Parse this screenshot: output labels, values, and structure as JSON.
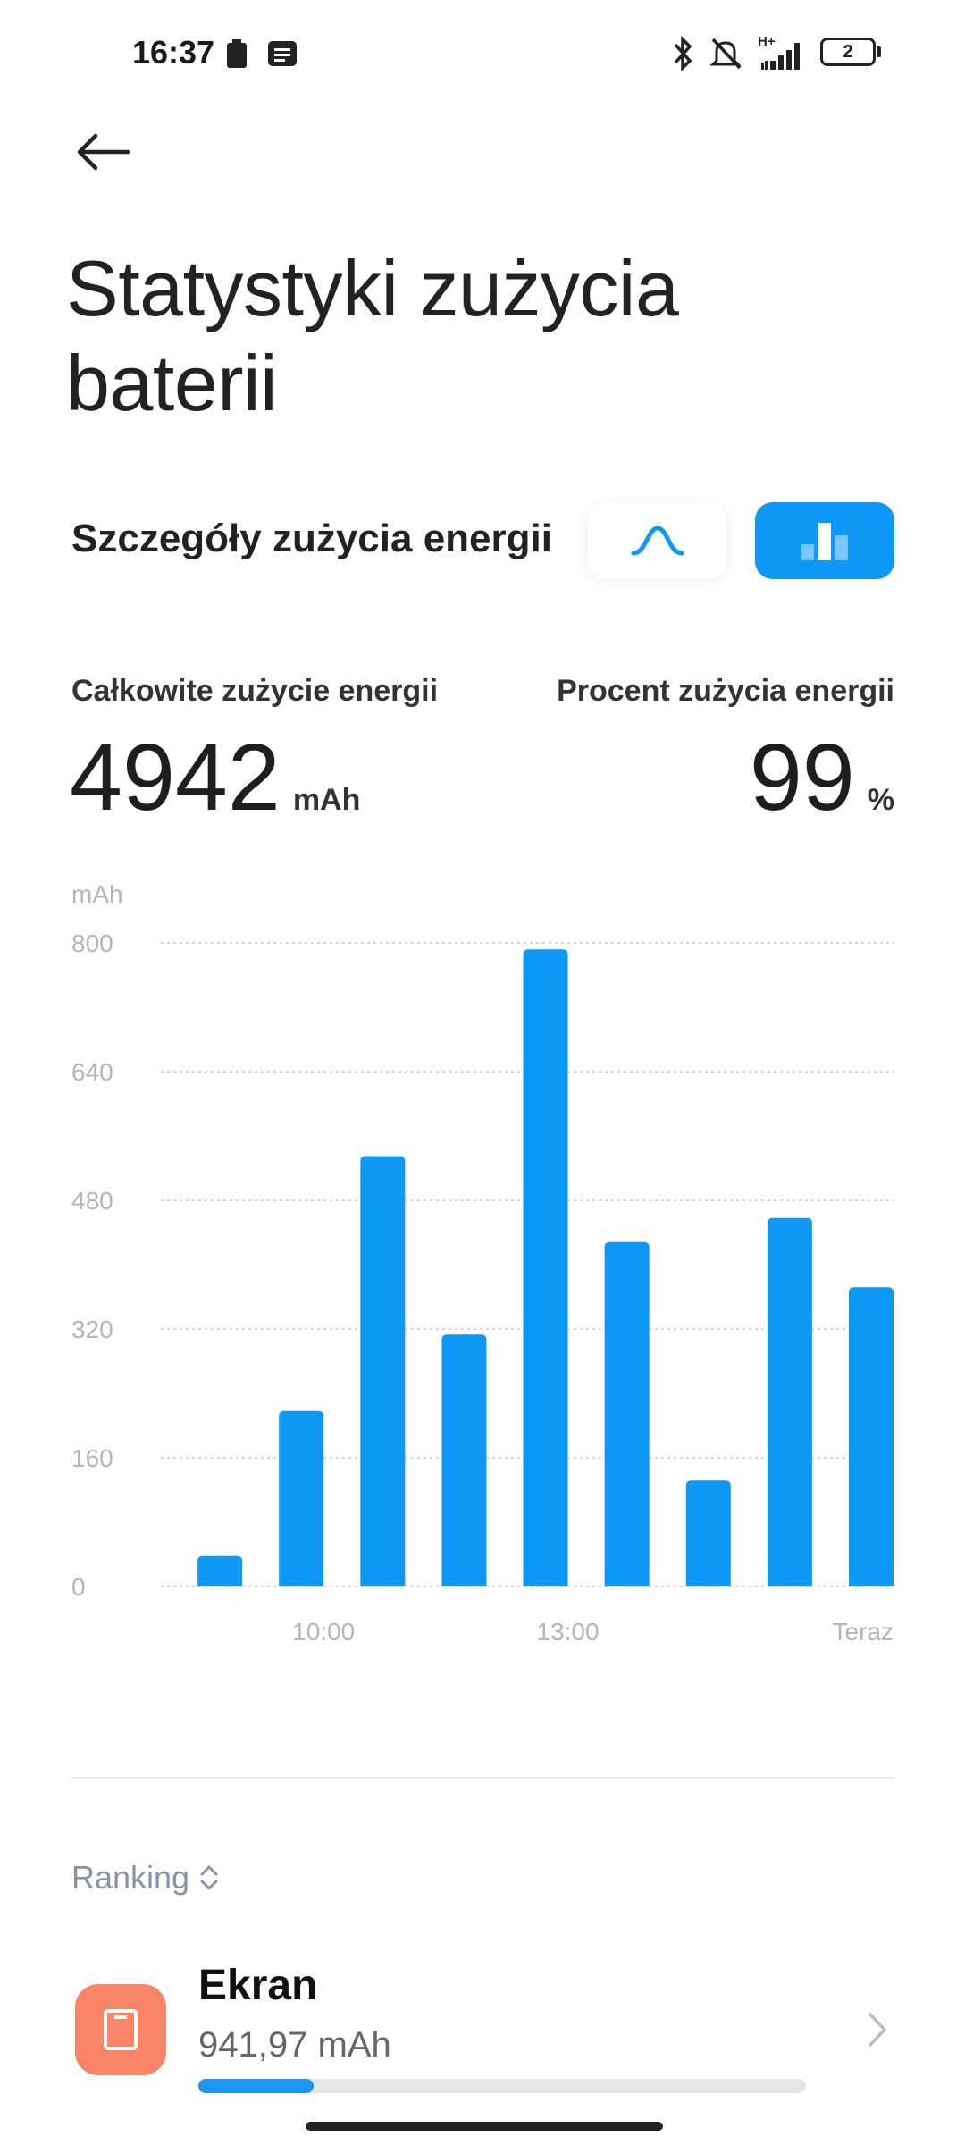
{
  "status_bar": {
    "time": "16:37",
    "network_label": "H+",
    "battery_label": "2",
    "icons": [
      "battery-saver-icon",
      "notification-icon",
      "bluetooth-icon",
      "muted-bell-icon",
      "signal-icon",
      "battery-icon"
    ]
  },
  "header": {
    "back_icon": "back-arrow-icon",
    "title": "Statystyki zużycia baterii"
  },
  "section": {
    "title": "Szczegóły zużycia energii",
    "toggles": [
      {
        "icon": "curve-chart-icon",
        "selected": false
      },
      {
        "icon": "bar-chart-icon",
        "selected": true
      }
    ],
    "accent_color": "#0d98f5"
  },
  "totals": {
    "total_label": "Całkowite zużycie energii",
    "total_value": "4942",
    "total_unit": "mAh",
    "percent_label": "Procent zużycia energii",
    "percent_value": "99",
    "percent_unit": "%"
  },
  "chart_data": {
    "type": "bar",
    "ylabel": "mAh",
    "ylim": [
      0,
      800
    ],
    "yticks": [
      "0",
      "160",
      "320",
      "480",
      "640",
      "800"
    ],
    "xticks": [
      {
        "label": "10:00",
        "after_bar": 2
      },
      {
        "label": "13:00",
        "after_bar": 5
      },
      {
        "label": "Teraz",
        "after_bar": 9
      }
    ],
    "values": [
      38,
      218,
      535,
      313,
      792,
      428,
      132,
      458,
      372
    ],
    "color": "#0d98f5",
    "grid": true
  },
  "ranking": {
    "label": "Ranking",
    "sort_icon": "sort-updown-icon",
    "items": [
      {
        "name": "Ekran",
        "value": "941,97 mAh",
        "icon": "screen-icon",
        "icon_color": "#fa8467",
        "share": 0.19
      }
    ]
  }
}
